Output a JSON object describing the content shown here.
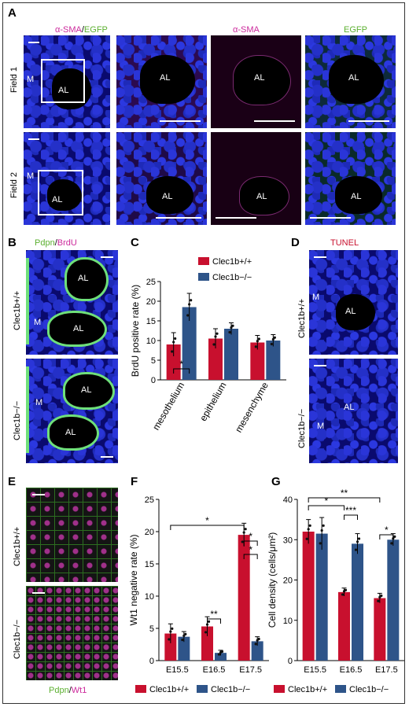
{
  "panels": {
    "a": "A",
    "b": "B",
    "c": "C",
    "d": "D",
    "e": "E",
    "f": "F",
    "g": "G"
  },
  "panel_a": {
    "header_merge_1": "α-SMA",
    "header_merge_sep": "/",
    "header_merge_2": "EGFP",
    "header_sma": "α-SMA",
    "header_egfp": "EGFP",
    "row1": "Field 1",
    "row2": "Field 2",
    "m": "M",
    "al": "AL"
  },
  "panel_b": {
    "title_1": "Pdpn",
    "title_sep": "/",
    "title_2": "BrdU",
    "row1": "Clec1b+/+",
    "row2": "Clec1b−/−",
    "al": "AL",
    "m": "M"
  },
  "panel_d": {
    "title": "TUNEL",
    "row1": "Clec1b+/+",
    "row2": "Clec1b−/−",
    "m": "M",
    "al": "AL"
  },
  "panel_e": {
    "row1": "Clec1b+/+",
    "row2": "Clec1b−/−",
    "footer_1": "Pdpn",
    "footer_sep": "/",
    "footer_2": "Wt1"
  },
  "colors": {
    "wt": "#c8102e",
    "ko": "#2e5489",
    "magenta": "#cc2a9c",
    "green": "#5cb030"
  },
  "chart_data": [
    {
      "type": "bar",
      "id": "C",
      "categories": [
        "mesothelium",
        "epithelium",
        "mesenchyme"
      ],
      "series": [
        {
          "name": "Clec1b+/+",
          "values": [
            9,
            10.5,
            9.5
          ],
          "err": [
            3,
            2.5,
            1.8
          ]
        },
        {
          "name": "Clec1b−/−",
          "values": [
            18.5,
            13,
            10
          ],
          "err": [
            3.5,
            1.5,
            1.5
          ]
        }
      ],
      "ylabel": "BrdU positive rate (%)",
      "ylim": [
        0,
        25
      ],
      "yticks": [
        0,
        5,
        10,
        15,
        20,
        25
      ],
      "significance": [
        "*"
      ],
      "legend": "top-right"
    },
    {
      "type": "bar",
      "id": "F",
      "categories": [
        "E15.5",
        "E16.5",
        "E17.5"
      ],
      "series": [
        {
          "name": "Clec1b+/+",
          "values": [
            4.2,
            5.3,
            19.5
          ],
          "err": [
            1.5,
            1.5,
            1.8
          ]
        },
        {
          "name": "Clec1b−/−",
          "values": [
            3.7,
            1.2,
            3.0
          ],
          "err": [
            0.8,
            0.4,
            0.7
          ]
        }
      ],
      "ylabel": "Wt1 negative rate (%)",
      "ylim": [
        0,
        25
      ],
      "yticks": [
        0,
        5,
        10,
        15,
        20,
        25
      ],
      "significance": [
        "*",
        "*",
        "**",
        "*"
      ],
      "legend": "bottom"
    },
    {
      "type": "bar",
      "id": "G",
      "categories": [
        "E15.5",
        "E16.5",
        "E17.5"
      ],
      "series": [
        {
          "name": "Clec1b+/+",
          "values": [
            32,
            17,
            15.5
          ],
          "err": [
            3,
            1,
            1.2
          ]
        },
        {
          "name": "Clec1b−/−",
          "values": [
            31.5,
            29,
            30
          ],
          "err": [
            4,
            2.5,
            1.5
          ]
        }
      ],
      "ylabel": "Cell density (cells/μm²)",
      "ylim": [
        0,
        40
      ],
      "yticks": [
        0,
        10,
        20,
        30,
        40
      ],
      "significance": [
        "**",
        "*",
        "***",
        "*"
      ],
      "legend": "bottom"
    }
  ]
}
